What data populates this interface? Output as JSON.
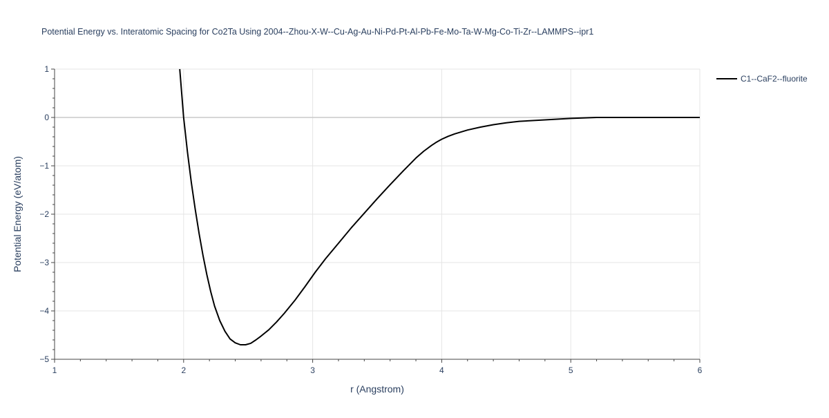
{
  "chart_data": {
    "type": "line",
    "title": "Potential Energy vs. Interatomic Spacing for Co2Ta Using 2004--Zhou-X-W--Cu-Ag-Au-Ni-Pd-Pt-Al-Pb-Fe-Mo-Ta-W-Mg-Co-Ti-Zr--LAMMPS--ipr1",
    "xlabel": "r (Angstrom)",
    "ylabel": "Potential Energy (eV/atom)",
    "xlim": [
      1,
      6
    ],
    "ylim": [
      -5,
      1
    ],
    "x_ticks": [
      1,
      2,
      3,
      4,
      5,
      6
    ],
    "x_tick_labels": [
      "1",
      "2",
      "3",
      "4",
      "5",
      "6"
    ],
    "y_ticks": [
      1,
      0,
      -1,
      -2,
      -3,
      -4,
      -5
    ],
    "y_tick_labels": [
      "1",
      "0",
      "−1",
      "−2",
      "−3",
      "−4",
      "−5"
    ],
    "grid": true,
    "legend_position": "top-right",
    "series": [
      {
        "name": "C1--CaF2--fluorite",
        "color": "#000000",
        "x": [
          1.97,
          2.0,
          2.03,
          2.06,
          2.09,
          2.12,
          2.15,
          2.18,
          2.21,
          2.24,
          2.28,
          2.32,
          2.36,
          2.4,
          2.44,
          2.48,
          2.52,
          2.56,
          2.6,
          2.66,
          2.72,
          2.78,
          2.86,
          2.94,
          3.02,
          3.1,
          3.2,
          3.3,
          3.4,
          3.5,
          3.6,
          3.7,
          3.8,
          3.86,
          3.92,
          3.96,
          4.0,
          4.05,
          4.1,
          4.2,
          4.3,
          4.4,
          4.5,
          4.6,
          4.8,
          5.0,
          5.2,
          5.5,
          6.0
        ],
        "y": [
          1.0,
          0.0,
          -0.72,
          -1.35,
          -1.9,
          -2.4,
          -2.85,
          -3.25,
          -3.6,
          -3.9,
          -4.2,
          -4.42,
          -4.58,
          -4.66,
          -4.7,
          -4.7,
          -4.67,
          -4.6,
          -4.52,
          -4.39,
          -4.23,
          -4.05,
          -3.79,
          -3.5,
          -3.2,
          -2.92,
          -2.6,
          -2.28,
          -1.98,
          -1.68,
          -1.39,
          -1.11,
          -0.84,
          -0.7,
          -0.58,
          -0.51,
          -0.45,
          -0.39,
          -0.34,
          -0.26,
          -0.2,
          -0.15,
          -0.11,
          -0.08,
          -0.05,
          -0.02,
          0.0,
          0.0,
          0.0
        ]
      }
    ]
  }
}
